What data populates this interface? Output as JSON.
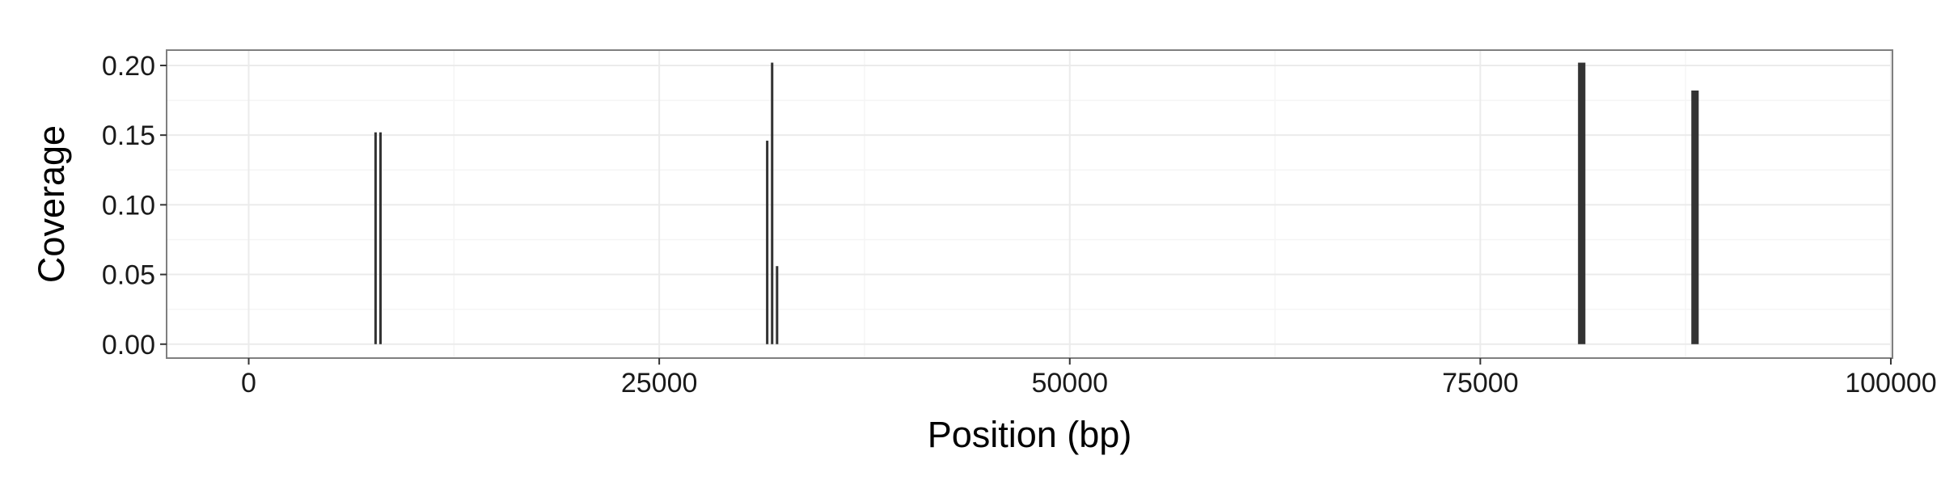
{
  "chart_data": {
    "type": "bar",
    "title": "",
    "xlabel": "Position (bp)",
    "ylabel": "Coverage",
    "xlim": [
      -5000,
      100100
    ],
    "ylim": [
      -0.01,
      0.211
    ],
    "x_ticks": [
      0,
      25000,
      50000,
      75000,
      100000
    ],
    "x_tick_labels": [
      "0",
      "25000",
      "50000",
      "75000",
      "100000"
    ],
    "y_ticks": [
      0.0,
      0.05,
      0.1,
      0.15,
      0.2
    ],
    "y_tick_labels": [
      "0.00",
      "0.05",
      "0.10",
      "0.15",
      "0.20"
    ],
    "grid": true,
    "legend": "none",
    "bar_color": "#333333",
    "panel_background": "#ffffff",
    "gridline_color": "#ebebeb",
    "bars": [
      {
        "x_start": 7650,
        "x_end": 7800,
        "y": 0.152
      },
      {
        "x_start": 7950,
        "x_end": 8100,
        "y": 0.152
      },
      {
        "x_start": 31500,
        "x_end": 31650,
        "y": 0.146
      },
      {
        "x_start": 31800,
        "x_end": 31950,
        "y": 0.202
      },
      {
        "x_start": 32100,
        "x_end": 32250,
        "y": 0.056
      },
      {
        "x_start": 80950,
        "x_end": 81400,
        "y": 0.202
      },
      {
        "x_start": 87850,
        "x_end": 88300,
        "y": 0.182
      }
    ]
  }
}
